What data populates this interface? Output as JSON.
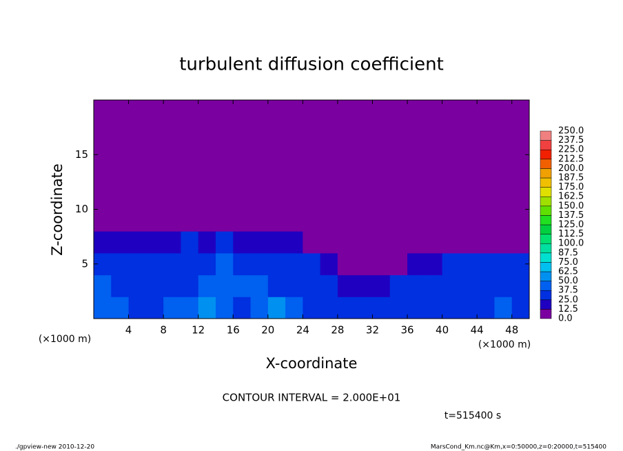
{
  "chart_data": {
    "type": "contour",
    "title": "turbulent diffusion coefficient",
    "x_label": "X-coordinate",
    "y_label": "Z-coordinate",
    "x_unit": "(×1000 m)",
    "y_unit": "(×1000 m)",
    "contour_note": "CONTOUR INTERVAL = 2.000E+01",
    "time_note": "t=515400 s",
    "footer_left": "./gpview-new  2010-12-20",
    "footer_right": "MarsCond_Km.nc@Km,x=0:50000,z=0:20000,t=515400",
    "xlim": [
      0,
      50
    ],
    "ylim": [
      0,
      20
    ],
    "xticks": [
      4,
      8,
      12,
      16,
      20,
      24,
      28,
      32,
      36,
      40,
      44,
      48
    ],
    "yticks": [
      5,
      10,
      15
    ],
    "x": [
      1,
      3,
      5,
      7,
      9,
      11,
      13,
      15,
      17,
      19,
      21,
      23,
      25,
      27,
      29,
      31,
      33,
      35,
      37,
      39,
      41,
      43,
      45,
      47,
      49
    ],
    "y": [
      1,
      3,
      5,
      7,
      9,
      11,
      13,
      15,
      17,
      19
    ],
    "z": [
      [
        45,
        40,
        35,
        30,
        40,
        45,
        50,
        40,
        35,
        45,
        50,
        40,
        35,
        25,
        25,
        30,
        30,
        25,
        30,
        30,
        35,
        30,
        35,
        40,
        35
      ],
      [
        40,
        35,
        30,
        30,
        30,
        35,
        40,
        45,
        45,
        40,
        35,
        35,
        30,
        25,
        20,
        20,
        20,
        25,
        25,
        30,
        30,
        30,
        25,
        30,
        30
      ],
      [
        25,
        30,
        25,
        30,
        30,
        30,
        35,
        40,
        35,
        30,
        30,
        30,
        28,
        22,
        5,
        5,
        5,
        8,
        15,
        20,
        25,
        30,
        25,
        25,
        25
      ],
      [
        15,
        15,
        20,
        20,
        20,
        25,
        20,
        25,
        20,
        20,
        20,
        15,
        10,
        5,
        0,
        0,
        0,
        0,
        0,
        0,
        0,
        5,
        5,
        5,
        0
      ],
      [
        0,
        0,
        0,
        0,
        0,
        0,
        5,
        10,
        5,
        0,
        0,
        0,
        0,
        0,
        0,
        0,
        0,
        0,
        0,
        0,
        0,
        0,
        0,
        0,
        0
      ],
      [
        0,
        0,
        0,
        0,
        0,
        0,
        0,
        0,
        0,
        0,
        0,
        0,
        0,
        0,
        0,
        0,
        0,
        0,
        0,
        0,
        0,
        0,
        0,
        0,
        0
      ],
      [
        0,
        0,
        0,
        0,
        0,
        0,
        0,
        0,
        0,
        0,
        0,
        0,
        0,
        0,
        0,
        0,
        0,
        0,
        0,
        0,
        0,
        0,
        0,
        0,
        0
      ],
      [
        0,
        0,
        0,
        0,
        0,
        0,
        0,
        0,
        0,
        0,
        0,
        0,
        0,
        0,
        0,
        0,
        0,
        0,
        0,
        0,
        0,
        0,
        0,
        0,
        0
      ],
      [
        0,
        0,
        0,
        0,
        0,
        0,
        0,
        0,
        0,
        0,
        0,
        0,
        0,
        0,
        0,
        0,
        0,
        0,
        0,
        0,
        0,
        0,
        0,
        0,
        0
      ],
      [
        0,
        0,
        0,
        0,
        0,
        0,
        0,
        0,
        0,
        0,
        0,
        0,
        0,
        0,
        0,
        0,
        0,
        0,
        0,
        0,
        0,
        0,
        0,
        0,
        0
      ]
    ],
    "colorbar": {
      "levels": [
        {
          "value": 0,
          "label": "0.0"
        },
        {
          "value": 12.5,
          "label": "12.5"
        },
        {
          "value": 25,
          "label": "25.0"
        },
        {
          "value": 37.5,
          "label": "37.5"
        },
        {
          "value": 50,
          "label": "50.0"
        },
        {
          "value": 62.5,
          "label": "62.5"
        },
        {
          "value": 75,
          "label": "75.0"
        },
        {
          "value": 87.5,
          "label": "87.5"
        },
        {
          "value": 100,
          "label": "100.0"
        },
        {
          "value": 112.5,
          "label": "112.5"
        },
        {
          "value": 125,
          "label": "125.0"
        },
        {
          "value": 137.5,
          "label": "137.5"
        },
        {
          "value": 150,
          "label": "150.0"
        },
        {
          "value": 162.5,
          "label": "162.5"
        },
        {
          "value": 175,
          "label": "175.0"
        },
        {
          "value": 187.5,
          "label": "187.5"
        },
        {
          "value": 200,
          "label": "200.0"
        },
        {
          "value": 212.5,
          "label": "212.5"
        },
        {
          "value": 225,
          "label": "225.0"
        },
        {
          "value": 237.5,
          "label": "237.5"
        },
        {
          "value": 250,
          "label": "250.0"
        }
      ],
      "colors": [
        "#7a00a0",
        "#2000c0",
        "#0030e0",
        "#0060f0",
        "#0090f0",
        "#00c0f0",
        "#00e0d0",
        "#00e0a0",
        "#00e070",
        "#00d040",
        "#20e020",
        "#60e000",
        "#a0e000",
        "#e0e000",
        "#f0c000",
        "#f0a000",
        "#f06000",
        "#f02000",
        "#f04040",
        "#f08080"
      ]
    }
  }
}
